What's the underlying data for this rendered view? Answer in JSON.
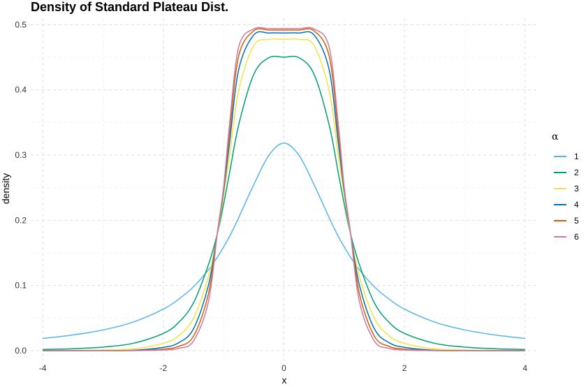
{
  "chart_data": {
    "type": "line",
    "title": "Density of Standard Plateau Dist.",
    "xlabel": "x",
    "ylabel": "density",
    "xlim": [
      -4.2,
      4.2
    ],
    "ylim": [
      -0.015,
      0.51
    ],
    "xticks": [
      -4,
      -2,
      0,
      2,
      4
    ],
    "xtick_labels": [
      "-4",
      "-2",
      "0",
      "2",
      "4"
    ],
    "yticks": [
      0.0,
      0.1,
      0.2,
      0.3,
      0.4,
      0.5
    ],
    "ytick_labels": [
      "0.0",
      "0.1",
      "0.2",
      "0.3",
      "0.4",
      "0.5"
    ],
    "grid": true,
    "legend_title": "α",
    "legend_position": "right",
    "x": [
      -4.0,
      -3.5,
      -3.0,
      -2.5,
      -2.0,
      -1.75,
      -1.5,
      -1.25,
      -1.1,
      -1.0,
      -0.9,
      -0.75,
      -0.5,
      -0.25,
      0.0,
      0.25,
      0.5,
      0.75,
      0.9,
      1.0,
      1.1,
      1.25,
      1.5,
      1.75,
      2.0,
      2.5,
      3.0,
      3.5,
      4.0
    ],
    "series": [
      {
        "name": "1",
        "color": "#56B4E9",
        "values": [
          0.0187,
          0.0241,
          0.0318,
          0.0439,
          0.0637,
          0.0787,
          0.0979,
          0.1242,
          0.1441,
          0.1592,
          0.1756,
          0.2041,
          0.2546,
          0.2996,
          0.3183,
          0.2996,
          0.2546,
          0.2041,
          0.1756,
          0.1592,
          0.1441,
          0.1242,
          0.0979,
          0.0787,
          0.0637,
          0.0439,
          0.0318,
          0.0241,
          0.0187
        ]
      },
      {
        "name": "2",
        "color": "#009E73",
        "values": [
          0.0018,
          0.003,
          0.0055,
          0.0113,
          0.0265,
          0.0429,
          0.0734,
          0.1324,
          0.181,
          0.2251,
          0.2735,
          0.3464,
          0.4239,
          0.4493,
          0.4502,
          0.4493,
          0.4239,
          0.3464,
          0.2735,
          0.2251,
          0.181,
          0.1324,
          0.0734,
          0.0429,
          0.0265,
          0.0113,
          0.0055,
          0.003,
          0.0018
        ]
      },
      {
        "name": "3",
        "color": "#F0E442",
        "values": [
          0.0002,
          0.0004,
          0.001,
          0.0029,
          0.0113,
          0.0225,
          0.0498,
          0.114,
          0.1813,
          0.2387,
          0.3012,
          0.399,
          0.4681,
          0.4774,
          0.4775,
          0.4774,
          0.4681,
          0.399,
          0.3012,
          0.2387,
          0.1813,
          0.114,
          0.0498,
          0.0225,
          0.0113,
          0.0029,
          0.001,
          0.0004,
          0.0002
        ]
      },
      {
        "name": "4",
        "color": "#0072B2",
        "values": [
          2e-05,
          5e-05,
          0.0002,
          0.0007,
          0.0051,
          0.012,
          0.0336,
          0.101,
          0.1834,
          0.2451,
          0.3202,
          0.4311,
          0.4843,
          0.4873,
          0.4873,
          0.4873,
          0.4843,
          0.4311,
          0.3202,
          0.2451,
          0.1834,
          0.101,
          0.0336,
          0.012,
          0.0051,
          0.0007,
          0.0002,
          5e-05,
          2e-05
        ]
      },
      {
        "name": "5",
        "color": "#D55E00",
        "values": [
          0.0,
          1e-05,
          4e-05,
          0.0002,
          0.0024,
          0.0065,
          0.0223,
          0.088,
          0.184,
          0.2487,
          0.336,
          0.4522,
          0.4906,
          0.4918,
          0.4918,
          0.4918,
          0.4906,
          0.4522,
          0.336,
          0.2487,
          0.184,
          0.088,
          0.0223,
          0.0065,
          0.0024,
          0.0002,
          4e-05,
          1e-05,
          0.0
        ]
      },
      {
        "name": "6",
        "color": "#CC79A7",
        "values": [
          0.0,
          0.0,
          1e-05,
          5e-05,
          0.0011,
          0.0035,
          0.0148,
          0.076,
          0.184,
          0.251,
          0.349,
          0.4659,
          0.4935,
          0.494,
          0.494,
          0.494,
          0.4935,
          0.4659,
          0.349,
          0.251,
          0.184,
          0.076,
          0.0148,
          0.0035,
          0.0011,
          5e-05,
          1e-05,
          0.0,
          0.0
        ]
      }
    ]
  }
}
